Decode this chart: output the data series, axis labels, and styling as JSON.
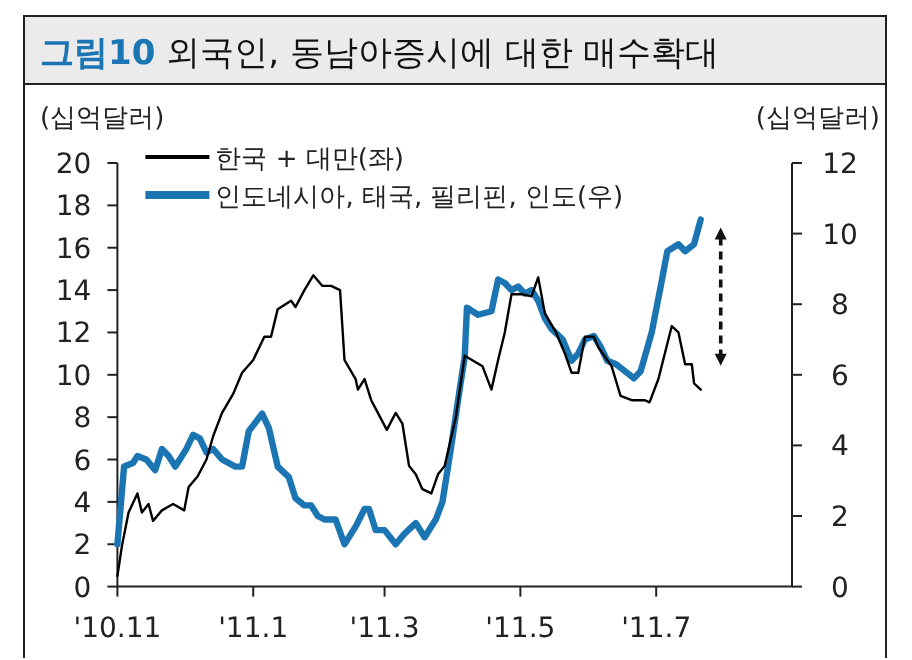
{
  "chart_data": {
    "type": "line",
    "title": "**그림10** 외국인, 동남아증시에 대한 매수확대",
    "ylabel": "(십억달러)",
    "y2label": "(십억달러)",
    "xlim": [
      "2010-11-01",
      "2011-08-31"
    ],
    "xticks": [
      {
        "value": "2010-11-01",
        "label": "'10.11"
      },
      {
        "value": "2011-01-01",
        "label": "'11.1"
      },
      {
        "value": "2011-03-01",
        "label": "'11.3"
      },
      {
        "value": "2011-05-01",
        "label": "'11.5"
      },
      {
        "value": "2011-07-01",
        "label": "'11.7"
      }
    ],
    "ylim": [
      0,
      20
    ],
    "yticks": [
      0,
      2,
      4,
      6,
      8,
      10,
      12,
      14,
      16,
      18,
      20
    ],
    "y2lim": [
      0,
      12
    ],
    "y2ticks": [
      0,
      2,
      4,
      6,
      8,
      10,
      12
    ],
    "legend": "top left",
    "grid": false,
    "series": [
      {
        "name": "한국 + 대만(좌)",
        "color": "#000000",
        "x": [
          "2010-11-01",
          "2010-11-03",
          "2010-11-06",
          "2010-11-10",
          "2010-11-12",
          "2010-11-15",
          "2010-11-17",
          "2010-11-21",
          "2010-11-26",
          "2010-12-01",
          "2010-12-03",
          "2010-12-07",
          "2010-12-11",
          "2010-12-14",
          "2010-12-18",
          "2010-12-23",
          "2010-12-27",
          "2011-01-01",
          "2011-01-06",
          "2011-01-09",
          "2011-01-12",
          "2011-01-18",
          "2011-01-20",
          "2011-01-24",
          "2011-01-28",
          "2011-02-01",
          "2011-02-05",
          "2011-02-09",
          "2011-02-11",
          "2011-02-16",
          "2011-02-17",
          "2011-02-20",
          "2011-02-23",
          "2011-02-26",
          "2011-03-02",
          "2011-03-06",
          "2011-03-09",
          "2011-03-12",
          "2011-03-15",
          "2011-03-18",
          "2011-03-22",
          "2011-03-25",
          "2011-03-28",
          "2011-04-02",
          "2011-04-06",
          "2011-04-14",
          "2011-04-18",
          "2011-04-21",
          "2011-04-24",
          "2011-04-27",
          "2011-05-02",
          "2011-05-06",
          "2011-05-09",
          "2011-05-12",
          "2011-05-17",
          "2011-05-21",
          "2011-05-24",
          "2011-05-27",
          "2011-05-30",
          "2011-06-03",
          "2011-06-05",
          "2011-06-11",
          "2011-06-15",
          "2011-06-20",
          "2011-06-26",
          "2011-06-28",
          "2011-07-02",
          "2011-07-08",
          "2011-07-11",
          "2011-07-14",
          "2011-07-17",
          "2011-07-18",
          "2011-07-21"
        ],
        "values": [
          0.5,
          1.9,
          3.5,
          4.4,
          3.5,
          3.9,
          3.1,
          3.6,
          3.9,
          3.6,
          4.7,
          5.2,
          6.0,
          7.1,
          8.2,
          9.1,
          10.1,
          10.7,
          11.8,
          11.8,
          13.1,
          13.5,
          13.2,
          14.0,
          14.7,
          14.2,
          14.2,
          14.0,
          10.7,
          9.8,
          9.3,
          9.8,
          8.8,
          8.2,
          7.4,
          8.2,
          7.7,
          5.7,
          5.3,
          4.6,
          4.4,
          5.3,
          5.7,
          8.0,
          10.9,
          10.4,
          9.3,
          10.7,
          12.0,
          13.8,
          13.8,
          13.7,
          14.6,
          12.9,
          12.0,
          11.0,
          10.1,
          10.1,
          11.8,
          11.8,
          11.3,
          10.4,
          9.0,
          8.8,
          8.8,
          8.7,
          9.8,
          12.3,
          12.0,
          10.5,
          10.5,
          9.6,
          9.3
        ]
      },
      {
        "name": "인도네시아, 태국, 필리핀, 인도(우)",
        "color": "#1b75b3",
        "axis": "y2",
        "x": [
          "2010-11-01",
          "2010-11-04",
          "2010-11-08",
          "2010-11-10",
          "2010-11-14",
          "2010-11-18",
          "2010-11-21",
          "2010-11-24",
          "2010-11-27",
          "2010-12-02",
          "2010-12-05",
          "2010-12-08",
          "2010-12-11",
          "2010-12-14",
          "2010-12-18",
          "2010-12-24",
          "2010-12-27",
          "2010-12-30",
          "2011-01-05",
          "2011-01-08",
          "2011-01-12",
          "2011-01-17",
          "2011-01-20",
          "2011-01-24",
          "2011-01-27",
          "2011-01-30",
          "2011-02-02",
          "2011-02-07",
          "2011-02-11",
          "2011-02-16",
          "2011-02-20",
          "2011-02-22",
          "2011-02-25",
          "2011-03-01",
          "2011-03-06",
          "2011-03-10",
          "2011-03-15",
          "2011-03-19",
          "2011-03-24",
          "2011-03-27",
          "2011-03-31",
          "2011-04-04",
          "2011-04-06",
          "2011-04-07",
          "2011-04-12",
          "2011-04-18",
          "2011-04-21",
          "2011-04-24",
          "2011-04-27",
          "2011-04-30",
          "2011-05-03",
          "2011-05-06",
          "2011-05-09",
          "2011-05-12",
          "2011-05-15",
          "2011-05-20",
          "2011-05-24",
          "2011-05-27",
          "2011-05-30",
          "2011-06-03",
          "2011-06-06",
          "2011-06-09",
          "2011-06-13",
          "2011-06-17",
          "2011-06-21",
          "2011-06-24",
          "2011-06-29",
          "2011-07-03",
          "2011-07-06",
          "2011-07-11",
          "2011-07-14",
          "2011-07-18",
          "2011-07-21"
        ],
        "values": [
          1.2,
          3.4,
          3.5,
          3.7,
          3.6,
          3.3,
          3.9,
          3.7,
          3.4,
          3.9,
          4.3,
          4.2,
          3.8,
          3.9,
          3.6,
          3.4,
          3.4,
          4.4,
          4.9,
          4.5,
          3.4,
          3.1,
          2.5,
          2.3,
          2.3,
          2.0,
          1.9,
          1.9,
          1.2,
          1.7,
          2.2,
          2.2,
          1.6,
          1.6,
          1.2,
          1.5,
          1.8,
          1.4,
          1.9,
          2.4,
          4.0,
          5.7,
          6.5,
          7.9,
          7.7,
          7.8,
          8.7,
          8.6,
          8.4,
          8.5,
          8.3,
          8.4,
          8.1,
          7.6,
          7.3,
          7.0,
          6.4,
          6.6,
          7.0,
          7.1,
          6.8,
          6.4,
          6.3,
          6.1,
          5.9,
          6.1,
          7.2,
          8.5,
          9.5,
          9.7,
          9.5,
          9.7,
          10.4
        ]
      }
    ]
  }
}
